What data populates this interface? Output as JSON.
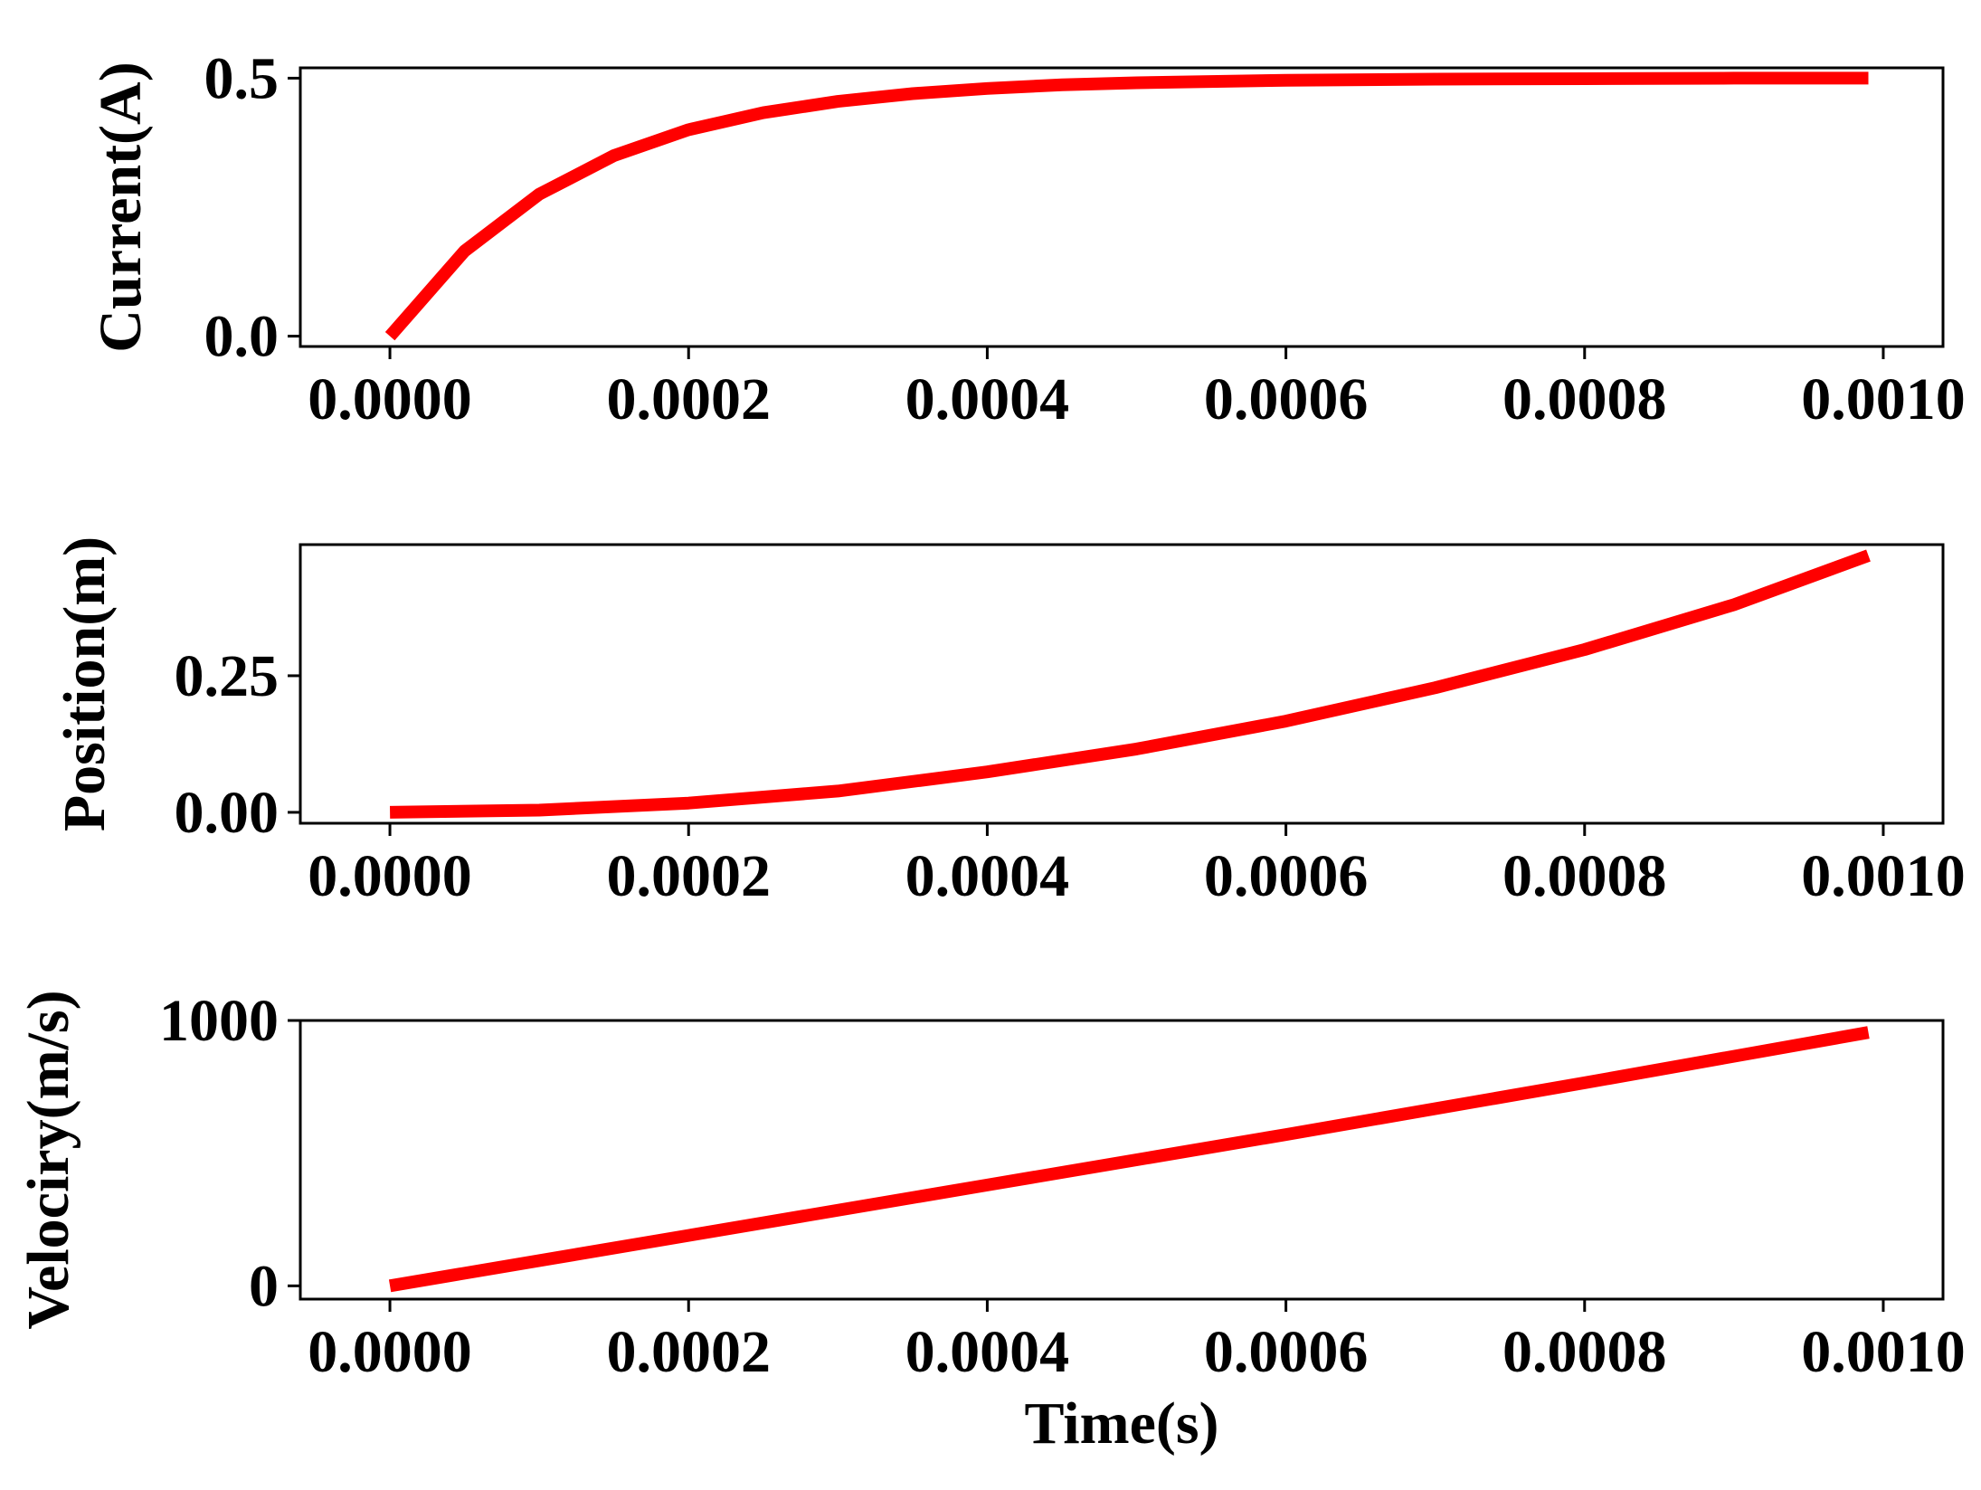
{
  "chart_data": [
    {
      "type": "line",
      "ylabel": "Current(A)",
      "xlabel": "",
      "xlim": [
        -6e-05,
        0.00104
      ],
      "ylim": [
        -0.02,
        0.52
      ],
      "xticks": [
        0,
        0.0002,
        0.0004,
        0.0006,
        0.0008,
        0.001
      ],
      "xtick_labels": [
        "0.0000",
        "0.0002",
        "0.0004",
        "0.0006",
        "0.0008",
        "0.0010"
      ],
      "yticks": [
        0,
        0.5
      ],
      "ytick_labels": [
        "0.0",
        "0.5"
      ],
      "series": [
        {
          "color": "#ff0000",
          "x": [
            0,
            5e-05,
            0.0001,
            0.00015,
            0.0002,
            0.00025,
            0.0003,
            0.00035,
            0.0004,
            0.00045,
            0.0005,
            0.0006,
            0.0007,
            0.0008,
            0.0009,
            0.00099
          ],
          "y": [
            0,
            0.165,
            0.275,
            0.35,
            0.4,
            0.433,
            0.455,
            0.47,
            0.48,
            0.487,
            0.491,
            0.496,
            0.498,
            0.499,
            0.5,
            0.5
          ]
        }
      ]
    },
    {
      "type": "line",
      "ylabel": "Position(m)",
      "xlabel": "",
      "xlim": [
        -6e-05,
        0.00104
      ],
      "ylim": [
        -0.02,
        0.49
      ],
      "xticks": [
        0,
        0.0002,
        0.0004,
        0.0006,
        0.0008,
        0.001
      ],
      "xtick_labels": [
        "0.0000",
        "0.0002",
        "0.0004",
        "0.0006",
        "0.0008",
        "0.0010"
      ],
      "yticks": [
        0,
        0.25
      ],
      "ytick_labels": [
        "0.00",
        "0.25"
      ],
      "series": [
        {
          "color": "#ff0000",
          "x": [
            0,
            0.0001,
            0.0002,
            0.0003,
            0.0004,
            0.0005,
            0.0006,
            0.0007,
            0.0008,
            0.0009,
            0.00099
          ],
          "y": [
            0,
            0.004,
            0.017,
            0.039,
            0.074,
            0.116,
            0.167,
            0.228,
            0.298,
            0.38,
            0.47
          ]
        }
      ]
    },
    {
      "type": "line",
      "ylabel": "Velociry(m/s)",
      "xlabel": "Time(s)",
      "xlim": [
        -6e-05,
        0.00104
      ],
      "ylim": [
        -50,
        1000
      ],
      "xticks": [
        0,
        0.0002,
        0.0004,
        0.0006,
        0.0008,
        0.001
      ],
      "xtick_labels": [
        "0.0000",
        "0.0002",
        "0.0004",
        "0.0006",
        "0.0008",
        "0.0010"
      ],
      "yticks": [
        0,
        1000
      ],
      "ytick_labels": [
        "0",
        "1000"
      ],
      "series": [
        {
          "color": "#ff0000",
          "x": [
            0,
            0.0002,
            0.0004,
            0.0006,
            0.0008,
            0.00099
          ],
          "y": [
            0,
            190,
            380,
            570,
            765,
            955
          ]
        }
      ]
    }
  ]
}
